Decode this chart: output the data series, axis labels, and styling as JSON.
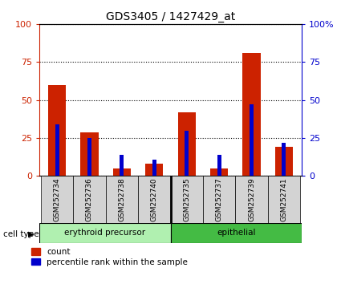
{
  "title": "GDS3405 / 1427429_at",
  "samples": [
    "GSM252734",
    "GSM252736",
    "GSM252738",
    "GSM252740",
    "GSM252735",
    "GSM252737",
    "GSM252739",
    "GSM252741"
  ],
  "red_values": [
    60,
    29,
    5,
    8,
    42,
    5,
    81,
    19
  ],
  "blue_values": [
    34,
    25,
    14,
    11,
    30,
    14,
    47,
    22
  ],
  "cell_types": [
    {
      "label": "erythroid precursor",
      "start": 0,
      "end": 4,
      "color": "#90EE90"
    },
    {
      "label": "epithelial",
      "start": 4,
      "end": 8,
      "color": "#3CB371"
    }
  ],
  "ylim": [
    0,
    100
  ],
  "yticks": [
    0,
    25,
    50,
    75,
    100
  ],
  "ytick_labels_left": [
    "0",
    "25",
    "50",
    "75",
    "100"
  ],
  "ytick_labels_right": [
    "0",
    "25",
    "50",
    "75",
    "100%"
  ],
  "red_color": "#CC2200",
  "blue_color": "#0000CC",
  "legend_red": "count",
  "legend_blue": "percentile rank within the sample",
  "left_tick_color": "#CC2200",
  "right_tick_color": "#0000CC",
  "cell_type_label": "cell type",
  "sample_box_color": "#d3d3d3",
  "erythroid_color": "#b0f0b0",
  "epithelial_color": "#44bb44"
}
